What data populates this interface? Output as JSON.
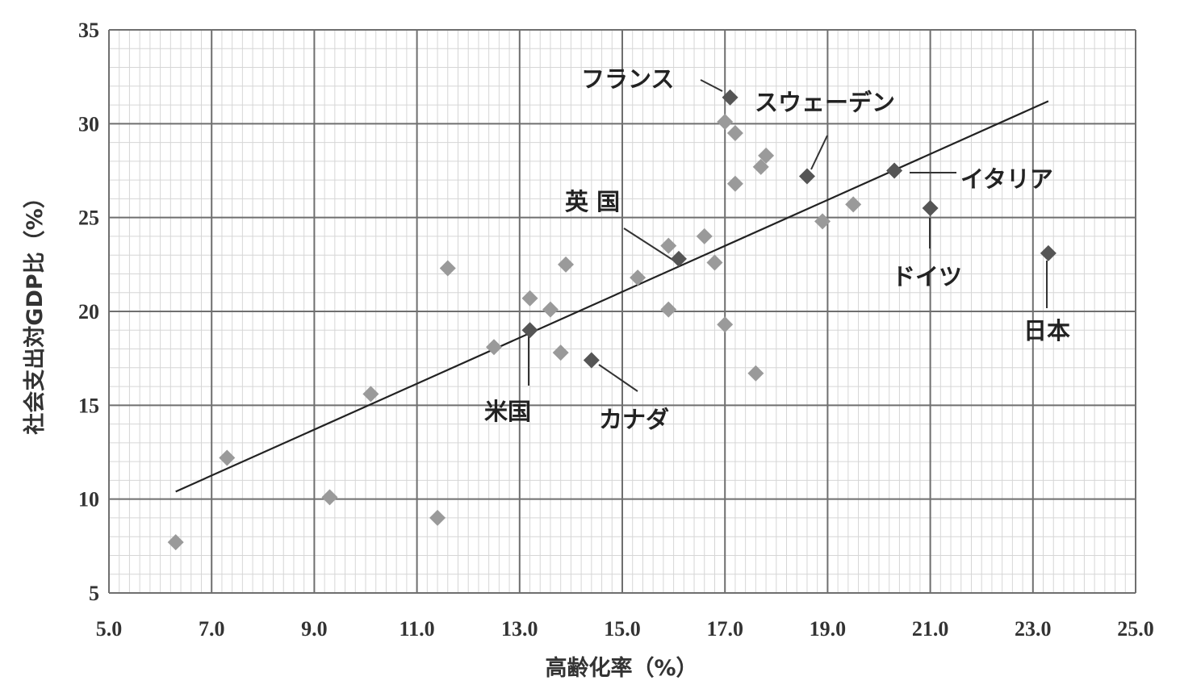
{
  "chart_data": {
    "type": "scatter",
    "xlabel": "高齢化率（%）",
    "ylabel": "社会支出対GDP比（%）",
    "xlim": [
      5.0,
      25.0
    ],
    "ylim": [
      5,
      35
    ],
    "x_ticks": [
      "5.0",
      "7.0",
      "9.0",
      "11.0",
      "13.0",
      "15.0",
      "17.0",
      "19.0",
      "21.0",
      "23.0",
      "25.0"
    ],
    "y_ticks": [
      "5",
      "10",
      "15",
      "20",
      "25",
      "30",
      "35"
    ],
    "grid": true,
    "marker_color": "#9a9a9a",
    "highlight_color": "#555555",
    "points": [
      {
        "x": 6.3,
        "y": 7.7
      },
      {
        "x": 7.3,
        "y": 12.2
      },
      {
        "x": 9.3,
        "y": 10.1
      },
      {
        "x": 10.1,
        "y": 15.6
      },
      {
        "x": 11.4,
        "y": 9.0
      },
      {
        "x": 11.6,
        "y": 22.3
      },
      {
        "x": 12.5,
        "y": 18.1
      },
      {
        "x": 13.2,
        "y": 20.7
      },
      {
        "x": 13.6,
        "y": 20.1
      },
      {
        "x": 13.8,
        "y": 17.8
      },
      {
        "x": 13.9,
        "y": 22.5
      },
      {
        "x": 15.3,
        "y": 21.8
      },
      {
        "x": 15.9,
        "y": 23.5
      },
      {
        "x": 15.9,
        "y": 20.1
      },
      {
        "x": 16.6,
        "y": 24.0
      },
      {
        "x": 16.8,
        "y": 22.6
      },
      {
        "x": 17.0,
        "y": 30.1
      },
      {
        "x": 17.0,
        "y": 19.3
      },
      {
        "x": 17.2,
        "y": 29.5
      },
      {
        "x": 17.2,
        "y": 26.8
      },
      {
        "x": 17.6,
        "y": 16.7
      },
      {
        "x": 17.7,
        "y": 27.7
      },
      {
        "x": 17.8,
        "y": 28.3
      },
      {
        "x": 18.9,
        "y": 24.8
      },
      {
        "x": 19.5,
        "y": 25.7
      },
      {
        "x": 17.1,
        "y": 31.4,
        "label": "フランス"
      },
      {
        "x": 18.6,
        "y": 27.2,
        "label": "スウェーデン"
      },
      {
        "x": 20.3,
        "y": 27.5,
        "label": "イタリア"
      },
      {
        "x": 21.0,
        "y": 25.5,
        "label": "ドイツ"
      },
      {
        "x": 23.3,
        "y": 23.1,
        "label": "日本"
      },
      {
        "x": 16.1,
        "y": 22.8,
        "label": "英 国"
      },
      {
        "x": 13.2,
        "y": 19.0,
        "label": "米国"
      },
      {
        "x": 14.4,
        "y": 17.4,
        "label": "カナダ"
      }
    ],
    "trendline": {
      "x": [
        6.3,
        23.3
      ],
      "y": [
        10.4,
        31.2
      ]
    }
  }
}
